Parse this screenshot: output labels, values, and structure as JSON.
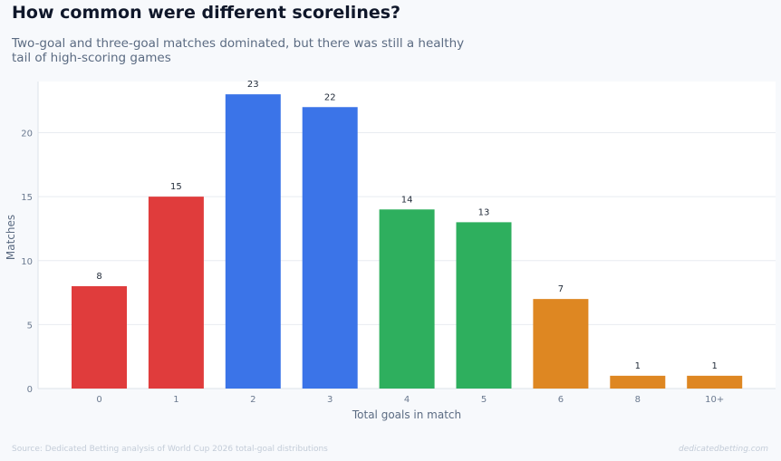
{
  "header": {
    "title": "How common were different scorelines?",
    "subtitle": "Two-goal and three-goal matches dominated, but there was still a healthy tail of high-scoring games"
  },
  "footer": {
    "source": "Source: Dedicated Betting analysis of World Cup 2026 total-goal distributions",
    "brand": "dedicatedbetting.com"
  },
  "colors": {
    "red": "#e03c3c",
    "blue": "#3b74e8",
    "green": "#2eaf5e",
    "orange": "#de8722",
    "grid": "#e8ecf1",
    "tick_label": "#6b7a90",
    "axis_label": "#5b6b82"
  },
  "chart_data": {
    "type": "bar",
    "xlabel": "Total goals in match",
    "ylabel": "Matches",
    "categories": [
      "0",
      "1",
      "2",
      "3",
      "4",
      "5",
      "6",
      "8",
      "10+"
    ],
    "values": [
      8,
      15,
      23,
      22,
      14,
      13,
      7,
      1,
      1
    ],
    "bar_colors": [
      "red",
      "red",
      "blue",
      "blue",
      "green",
      "green",
      "orange",
      "orange",
      "orange"
    ],
    "ylim": [
      0,
      24
    ],
    "yticks": [
      0,
      5,
      10,
      15,
      20
    ],
    "data_labels": true,
    "grid": "horizontal"
  }
}
